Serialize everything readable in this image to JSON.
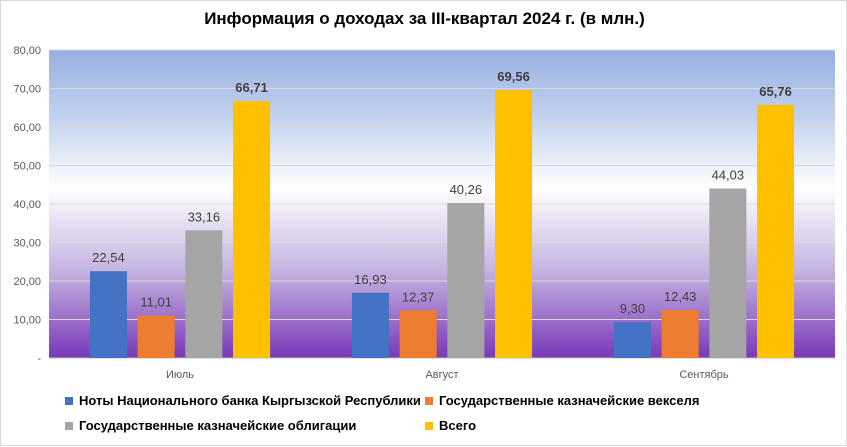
{
  "chart_data": {
    "type": "bar",
    "title": "Информация о доходах за III-квартал 2024 г. (в млн.)",
    "categories": [
      "Июль",
      "Август",
      "Сентябрь"
    ],
    "series": [
      {
        "name": "Ноты Национального банка Кыргызской Республики",
        "color": "#4472c4",
        "values": [
          22.54,
          16.93,
          9.3
        ],
        "labels": [
          "22,54",
          "16,93",
          "9,30"
        ]
      },
      {
        "name": "Государственные казначейские векселя",
        "color": "#ed7d31",
        "values": [
          11.01,
          12.37,
          12.43
        ],
        "labels": [
          "11,01",
          "12,37",
          "12,43"
        ]
      },
      {
        "name": "Государственные казначейские облигации",
        "color": "#a5a5a5",
        "values": [
          33.16,
          40.26,
          44.03
        ],
        "labels": [
          "33,16",
          "40,26",
          "44,03"
        ]
      },
      {
        "name": "Всего",
        "color": "#ffc000",
        "values": [
          66.71,
          69.56,
          65.76
        ],
        "labels": [
          "66,71",
          "69,56",
          "65,76"
        ]
      }
    ],
    "ylim": [
      0,
      80
    ],
    "yticks": [
      0,
      10,
      20,
      30,
      40,
      50,
      60,
      70,
      80
    ],
    "ytick_labels": [
      "-",
      "10,00",
      "20,00",
      "30,00",
      "40,00",
      "50,00",
      "60,00",
      "70,00",
      "80,00"
    ],
    "grid": true,
    "legend_position": "bottom"
  }
}
